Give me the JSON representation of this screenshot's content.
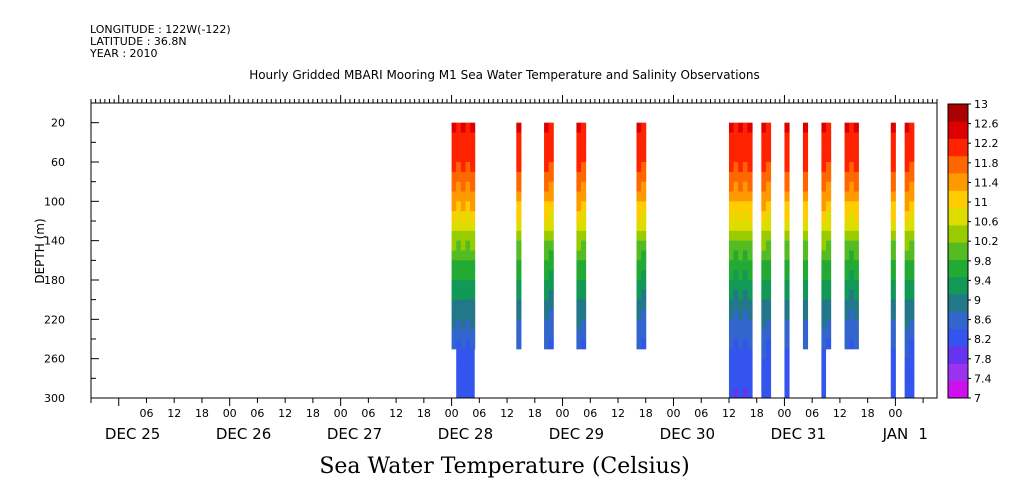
{
  "header": {
    "longitude": "LONGITUDE : 122W(-122)",
    "latitude": "LATITUDE : 36.8N",
    "year": "YEAR : 2010"
  },
  "title": "Hourly Gridded MBARI Mooring M1 Sea Water Temperature and Salinity Observations",
  "figure_title": "Sea Water Temperature (Celsius)",
  "chart_data": {
    "type": "heatmap",
    "title": "Hourly Gridded MBARI Mooring M1 Sea Water Temperature and Salinity Observations",
    "ylabel": "DEPTH (m)",
    "xlabel": "",
    "ylim": [
      300,
      0
    ],
    "yticks": [
      20,
      60,
      100,
      140,
      180,
      220,
      260,
      300
    ],
    "xlim_hours": [
      -6,
      177
    ],
    "x_hour_ticks": [
      {
        "h": 6,
        "label": "06"
      },
      {
        "h": 12,
        "label": "12"
      },
      {
        "h": 18,
        "label": "18"
      },
      {
        "h": 24,
        "label": "00"
      },
      {
        "h": 30,
        "label": "06"
      },
      {
        "h": 36,
        "label": "12"
      },
      {
        "h": 42,
        "label": "18"
      },
      {
        "h": 48,
        "label": "00"
      },
      {
        "h": 54,
        "label": "06"
      },
      {
        "h": 60,
        "label": "12"
      },
      {
        "h": 66,
        "label": "18"
      },
      {
        "h": 72,
        "label": "00"
      },
      {
        "h": 78,
        "label": "06"
      },
      {
        "h": 84,
        "label": "12"
      },
      {
        "h": 90,
        "label": "18"
      },
      {
        "h": 96,
        "label": "00"
      },
      {
        "h": 102,
        "label": "06"
      },
      {
        "h": 108,
        "label": "12"
      },
      {
        "h": 114,
        "label": "18"
      },
      {
        "h": 120,
        "label": "00"
      },
      {
        "h": 126,
        "label": "06"
      },
      {
        "h": 132,
        "label": "12"
      },
      {
        "h": 138,
        "label": "18"
      },
      {
        "h": 144,
        "label": "00"
      },
      {
        "h": 150,
        "label": "06"
      },
      {
        "h": 156,
        "label": "12"
      },
      {
        "h": 162,
        "label": "18"
      },
      {
        "h": 168,
        "label": "00"
      }
    ],
    "x_day_labels": [
      {
        "h": 3,
        "label": "DEC 25"
      },
      {
        "h": 27,
        "label": "DEC 26"
      },
      {
        "h": 51,
        "label": "DEC 27"
      },
      {
        "h": 75,
        "label": "DEC 28"
      },
      {
        "h": 99,
        "label": "DEC 29"
      },
      {
        "h": 123,
        "label": "DEC 30"
      },
      {
        "h": 147,
        "label": "DEC 31"
      },
      {
        "h": 168,
        "label": "JAN"
      },
      {
        "h": 174,
        "label": "1"
      }
    ],
    "colorbar": {
      "levels": [
        7,
        7.4,
        7.8,
        8.2,
        8.6,
        9,
        9.4,
        9.8,
        10.2,
        10.6,
        11,
        11.4,
        11.8,
        12.2,
        12.6,
        13
      ],
      "colors": [
        "#cc11ee",
        "#9933ee",
        "#6633ee",
        "#3355ee",
        "#3366cc",
        "#227788",
        "#119955",
        "#22aa33",
        "#55bb22",
        "#99cc00",
        "#dddd00",
        "#ffcc00",
        "#ff9900",
        "#ff6600",
        "#ff2200",
        "#dd0000",
        "#aa0000"
      ]
    },
    "profile": [
      {
        "depth": 20,
        "temp": 12.55
      },
      {
        "depth": 40,
        "temp": 12.4
      },
      {
        "depth": 60,
        "temp": 12.2
      },
      {
        "depth": 80,
        "temp": 11.9
      },
      {
        "depth": 100,
        "temp": 11.4
      },
      {
        "depth": 120,
        "temp": 10.8
      },
      {
        "depth": 140,
        "temp": 10.2
      },
      {
        "depth": 160,
        "temp": 9.7
      },
      {
        "depth": 180,
        "temp": 9.3
      },
      {
        "depth": 200,
        "temp": 8.9
      },
      {
        "depth": 220,
        "temp": 8.55
      },
      {
        "depth": 240,
        "temp": 8.25
      },
      {
        "depth": 260,
        "temp": 8.0
      },
      {
        "depth": 300,
        "temp": 7.8
      }
    ],
    "segments": [
      {
        "start": 72,
        "end": 77,
        "max_depth": 250,
        "deep_start": 73,
        "deep_end": 77,
        "deep_depth": 300
      },
      {
        "start": 86,
        "end": 87,
        "max_depth": 250
      },
      {
        "start": 92,
        "end": 94,
        "max_depth": 250
      },
      {
        "start": 99,
        "end": 101,
        "max_depth": 250
      },
      {
        "start": 112,
        "end": 114,
        "max_depth": 250
      },
      {
        "start": 132,
        "end": 137,
        "max_depth": 300
      },
      {
        "start": 139,
        "end": 141,
        "max_depth": 300
      },
      {
        "start": 144,
        "end": 145,
        "max_depth": 300
      },
      {
        "start": 148,
        "end": 149,
        "max_depth": 250
      },
      {
        "start": 152,
        "end": 154,
        "max_depth": 250,
        "deep_start": 152,
        "deep_end": 153,
        "deep_depth": 300
      },
      {
        "start": 157,
        "end": 160,
        "max_depth": 250
      },
      {
        "start": 167,
        "end": 168,
        "max_depth": 300
      },
      {
        "start": 170,
        "end": 172,
        "max_depth": 300
      }
    ]
  }
}
